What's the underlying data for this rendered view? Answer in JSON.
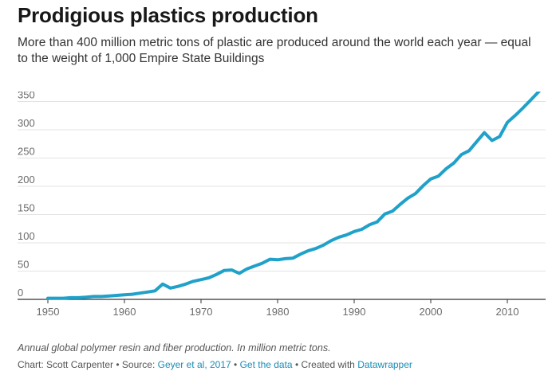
{
  "header": {
    "title": "Prodigious plastics production",
    "subtitle": "More than 400 million metric tons of plastic are produced around the world each year — equal to the weight of 1,000 Empire State Buildings"
  },
  "footer": {
    "note": "Annual global polymer resin and fiber production. In million metric tons.",
    "credit_prefix": "Chart: Scott Carpenter • Source: ",
    "source_link": "Geyer et al, 2017",
    "separator1": " • ",
    "data_link": "Get the data",
    "separator2": " • Created with ",
    "tool_link": "Datawrapper"
  },
  "colors": {
    "line": "#1fa1c9",
    "grid": "#e3e3e3",
    "axis": "#333333",
    "link": "#1a8cb8"
  },
  "chart_data": {
    "type": "line",
    "xlim": [
      1950,
      2015
    ],
    "ylim": [
      0,
      380
    ],
    "xticks": [
      1950,
      1960,
      1970,
      1980,
      1990,
      2000,
      2010
    ],
    "yticks": [
      0,
      50,
      100,
      150,
      200,
      250,
      300,
      350
    ],
    "grid": "horizontal",
    "series": [
      {
        "x": [
          1950,
          1951,
          1952,
          1953,
          1954,
          1955,
          1956,
          1957,
          1958,
          1959,
          1960,
          1961,
          1962,
          1963,
          1964,
          1965,
          1966,
          1967,
          1968,
          1969,
          1970,
          1971,
          1972,
          1973,
          1974,
          1975,
          1976,
          1977,
          1978,
          1979,
          1980,
          1981,
          1982,
          1983,
          1984,
          1985,
          1986,
          1987,
          1988,
          1989,
          1990,
          1991,
          1992,
          1993,
          1994,
          1995,
          1996,
          1997,
          1998,
          1999,
          2000,
          2001,
          2002,
          2003,
          2004,
          2005,
          2006,
          2007,
          2008,
          2009,
          2010,
          2011,
          2012,
          2013,
          2014,
          2015
        ],
        "values": [
          2,
          2,
          2,
          3,
          3,
          4,
          5,
          5,
          6,
          7,
          8,
          9,
          11,
          13,
          15,
          27,
          20,
          23,
          27,
          32,
          35,
          38,
          44,
          51,
          52,
          46,
          54,
          59,
          64,
          71,
          70,
          72,
          73,
          80,
          86,
          90,
          96,
          104,
          110,
          114,
          120,
          124,
          132,
          137,
          151,
          156,
          168,
          179,
          187,
          201,
          213,
          218,
          231,
          241,
          256,
          263,
          279,
          295,
          281,
          288,
          313,
          325,
          338,
          352,
          366,
          381
        ]
      }
    ]
  }
}
